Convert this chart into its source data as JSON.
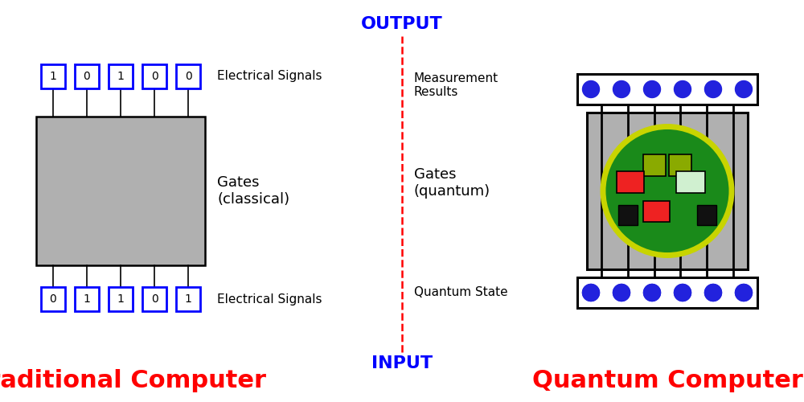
{
  "title_left": "Traditional Computer",
  "title_right": "Quantum Computer",
  "title_color": "red",
  "title_fontsize": 22,
  "output_label": "OUTPUT",
  "input_label": "INPUT",
  "io_color": "blue",
  "io_fontsize": 16,
  "left_top_bits": [
    "1",
    "0",
    "1",
    "0",
    "0"
  ],
  "left_bottom_bits": [
    "0",
    "1",
    "1",
    "0",
    "1"
  ],
  "left_top_label": "Electrical Signals",
  "left_bottom_label": "Electrical Signals",
  "left_gate_label": "Gates\n(classical)",
  "right_top_label": "Measurement\nResults",
  "right_bottom_label": "Quantum State",
  "right_gate_label": "Gates\n(quantum)",
  "bit_box_color": "blue",
  "bit_text_color": "black",
  "classical_box_color": "#b0b0b0",
  "classical_box_edge": "black",
  "divider_color": "red",
  "bg_color": "white",
  "quantum_outer_box_color": "#b0b0b0",
  "quantum_circle_color": "#1a8a1a",
  "quantum_circle_edge": "#c8d400",
  "quantum_dot_color": "#2222dd",
  "gate_olive": "#8aaa00",
  "gate_red": "#ee2222",
  "gate_lightgreen": "#d0f0d0",
  "gate_black": "#111111"
}
